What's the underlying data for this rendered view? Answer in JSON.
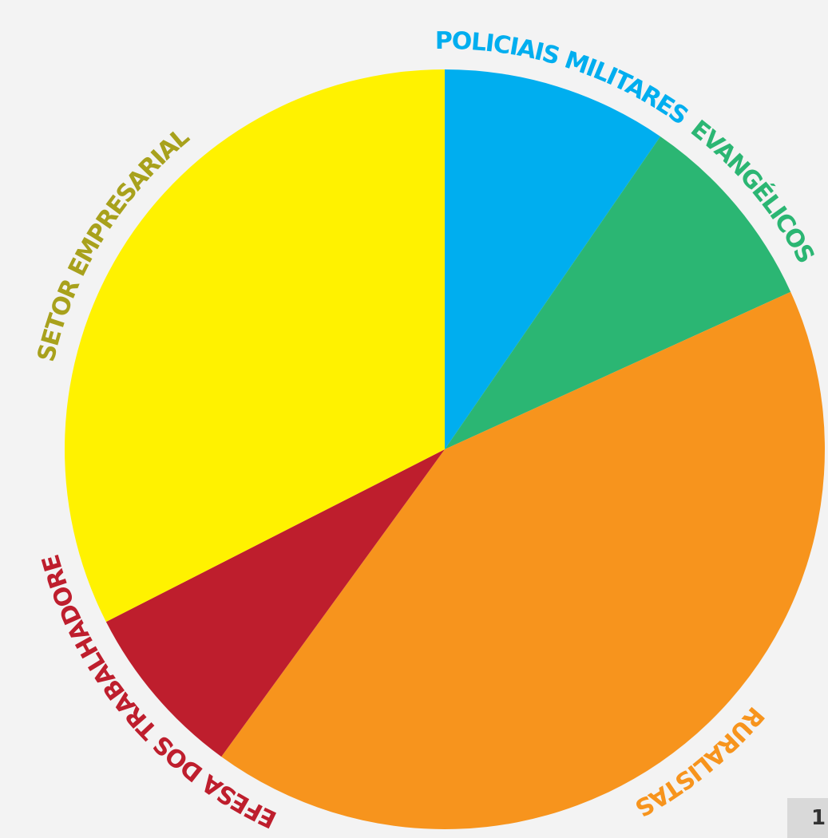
{
  "chart_data": {
    "type": "pie",
    "title": "",
    "start_angle_deg": 0,
    "direction": "clockwise",
    "legend": "none (labels placed around the pie)",
    "slices": [
      {
        "label": "POLICIAIS MILITARES",
        "value": 9.6,
        "color": "#00AEEF"
      },
      {
        "label": "EVANGÉLICOS",
        "value": 8.6,
        "color": "#2BB673"
      },
      {
        "label": "RURALISTAS",
        "value": 41.8,
        "color": "#F7941D"
      },
      {
        "label": "DEFESA DOS TRABALHADORES",
        "value": 7.5,
        "color": "#BE1E2D"
      },
      {
        "label": "SETOR EMPRESARIAL",
        "value": 32.5,
        "color": "#FFF200"
      }
    ]
  },
  "colors": {
    "background": "#F3F3F3",
    "label_setor": "#A8A11C",
    "label_policiais": "#00AEEF",
    "label_evangelicos": "#2BB673",
    "label_ruralistas": "#F7941D",
    "label_defesa": "#BE1E2D"
  },
  "corner_badge": "1"
}
